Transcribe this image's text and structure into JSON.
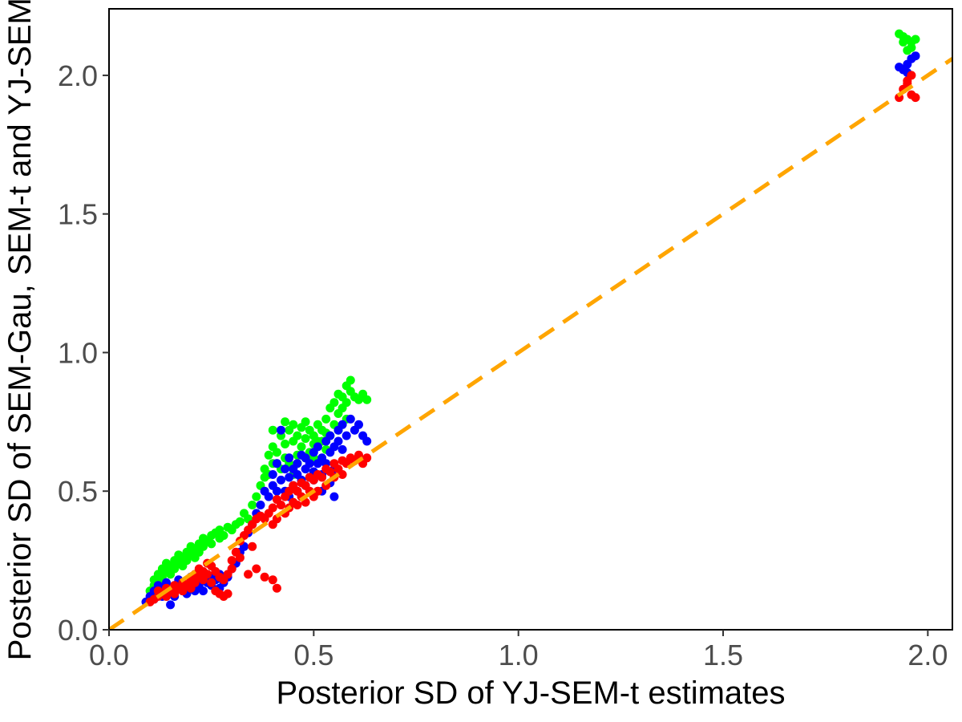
{
  "chart_data": {
    "type": "scatter",
    "title": "",
    "xlabel": "Posterior SD of YJ-SEM-t estimates",
    "ylabel": "Posterior SD of SEM-Gau, SEM-t and YJ-SEM-t",
    "xlim": [
      0.0,
      2.06
    ],
    "ylim": [
      0.0,
      2.24
    ],
    "xticks": [
      0.0,
      0.5,
      1.0,
      1.5,
      2.0
    ],
    "xtick_labels": [
      "0.0",
      "0.5",
      "1.0",
      "1.5",
      "2.0"
    ],
    "yticks": [
      0.0,
      0.5,
      1.0,
      1.5,
      2.0
    ],
    "ytick_labels": [
      "0.0",
      "0.5",
      "1.0",
      "1.5",
      "2.0"
    ],
    "grid": false,
    "reference_line": {
      "slope": 1,
      "intercept": 0,
      "style": "dashed",
      "color": "#FFA500"
    },
    "colors": {
      "SEM-Gau": "#00FF00",
      "SEM-t": "#0000FF",
      "YJ-SEM-t": "#FF0000"
    },
    "series": [
      {
        "color": "#00FF00",
        "points": [
          [
            0.1,
            0.14
          ],
          [
            0.11,
            0.16
          ],
          [
            0.11,
            0.18
          ],
          [
            0.12,
            0.17
          ],
          [
            0.12,
            0.2
          ],
          [
            0.13,
            0.19
          ],
          [
            0.13,
            0.22
          ],
          [
            0.14,
            0.21
          ],
          [
            0.14,
            0.24
          ],
          [
            0.15,
            0.2
          ],
          [
            0.15,
            0.23
          ],
          [
            0.16,
            0.22
          ],
          [
            0.16,
            0.25
          ],
          [
            0.17,
            0.24
          ],
          [
            0.17,
            0.27
          ],
          [
            0.18,
            0.23
          ],
          [
            0.18,
            0.26
          ],
          [
            0.19,
            0.25
          ],
          [
            0.19,
            0.28
          ],
          [
            0.2,
            0.27
          ],
          [
            0.2,
            0.3
          ],
          [
            0.21,
            0.26
          ],
          [
            0.21,
            0.29
          ],
          [
            0.22,
            0.31
          ],
          [
            0.22,
            0.28
          ],
          [
            0.23,
            0.3
          ],
          [
            0.23,
            0.33
          ],
          [
            0.24,
            0.32
          ],
          [
            0.25,
            0.31
          ],
          [
            0.25,
            0.34
          ],
          [
            0.26,
            0.35
          ],
          [
            0.27,
            0.33
          ],
          [
            0.27,
            0.36
          ],
          [
            0.28,
            0.34
          ],
          [
            0.29,
            0.37
          ],
          [
            0.3,
            0.36
          ],
          [
            0.31,
            0.38
          ],
          [
            0.32,
            0.39
          ],
          [
            0.33,
            0.42
          ],
          [
            0.34,
            0.4
          ],
          [
            0.35,
            0.45
          ],
          [
            0.36,
            0.48
          ],
          [
            0.37,
            0.52
          ],
          [
            0.38,
            0.55
          ],
          [
            0.38,
            0.58
          ],
          [
            0.39,
            0.63
          ],
          [
            0.39,
            0.56
          ],
          [
            0.4,
            0.66
          ],
          [
            0.4,
            0.6
          ],
          [
            0.41,
            0.64
          ],
          [
            0.42,
            0.58
          ],
          [
            0.42,
            0.7
          ],
          [
            0.43,
            0.62
          ],
          [
            0.43,
            0.67
          ],
          [
            0.44,
            0.72
          ],
          [
            0.44,
            0.6
          ],
          [
            0.45,
            0.68
          ],
          [
            0.45,
            0.74
          ],
          [
            0.46,
            0.63
          ],
          [
            0.46,
            0.7
          ],
          [
            0.47,
            0.66
          ],
          [
            0.47,
            0.73
          ],
          [
            0.48,
            0.62
          ],
          [
            0.48,
            0.69
          ],
          [
            0.49,
            0.72
          ],
          [
            0.49,
            0.64
          ],
          [
            0.5,
            0.7
          ],
          [
            0.5,
            0.67
          ],
          [
            0.51,
            0.74
          ],
          [
            0.52,
            0.68
          ],
          [
            0.52,
            0.72
          ],
          [
            0.53,
            0.65
          ],
          [
            0.53,
            0.76
          ],
          [
            0.54,
            0.7
          ],
          [
            0.54,
            0.8
          ],
          [
            0.55,
            0.74
          ],
          [
            0.55,
            0.82
          ],
          [
            0.56,
            0.78
          ],
          [
            0.56,
            0.85
          ],
          [
            0.57,
            0.8
          ],
          [
            0.57,
            0.84
          ],
          [
            0.58,
            0.88
          ],
          [
            0.58,
            0.82
          ],
          [
            0.59,
            0.9
          ],
          [
            0.59,
            0.86
          ],
          [
            0.6,
            0.84
          ],
          [
            0.61,
            0.83
          ],
          [
            0.62,
            0.85
          ],
          [
            0.63,
            0.83
          ],
          [
            0.4,
            0.72
          ],
          [
            0.41,
            0.6
          ],
          [
            0.43,
            0.75
          ],
          [
            0.45,
            0.56
          ],
          [
            0.46,
            0.6
          ],
          [
            0.48,
            0.75
          ],
          [
            0.5,
            0.62
          ],
          [
            0.51,
            0.68
          ],
          [
            0.53,
            0.71
          ],
          [
            0.56,
            0.72
          ],
          [
            0.58,
            0.76
          ],
          [
            1.93,
            2.15
          ],
          [
            1.94,
            2.14
          ],
          [
            1.95,
            2.13
          ],
          [
            1.96,
            2.12
          ],
          [
            1.97,
            2.13
          ],
          [
            1.96,
            2.1
          ],
          [
            1.95,
            2.09
          ],
          [
            1.94,
            2.12
          ]
        ]
      },
      {
        "color": "#0000FF",
        "points": [
          [
            0.09,
            0.1
          ],
          [
            0.1,
            0.12
          ],
          [
            0.11,
            0.11
          ],
          [
            0.11,
            0.14
          ],
          [
            0.12,
            0.13
          ],
          [
            0.12,
            0.16
          ],
          [
            0.13,
            0.12
          ],
          [
            0.13,
            0.15
          ],
          [
            0.14,
            0.14
          ],
          [
            0.14,
            0.17
          ],
          [
            0.15,
            0.09
          ],
          [
            0.15,
            0.13
          ],
          [
            0.16,
            0.16
          ],
          [
            0.16,
            0.12
          ],
          [
            0.17,
            0.15
          ],
          [
            0.17,
            0.18
          ],
          [
            0.18,
            0.14
          ],
          [
            0.18,
            0.17
          ],
          [
            0.19,
            0.13
          ],
          [
            0.19,
            0.16
          ],
          [
            0.2,
            0.15
          ],
          [
            0.2,
            0.19
          ],
          [
            0.21,
            0.14
          ],
          [
            0.21,
            0.17
          ],
          [
            0.22,
            0.2
          ],
          [
            0.22,
            0.16
          ],
          [
            0.23,
            0.18
          ],
          [
            0.23,
            0.14
          ],
          [
            0.24,
            0.17
          ],
          [
            0.24,
            0.2
          ],
          [
            0.25,
            0.16
          ],
          [
            0.25,
            0.19
          ],
          [
            0.26,
            0.18
          ],
          [
            0.27,
            0.15
          ],
          [
            0.27,
            0.2
          ],
          [
            0.28,
            0.17
          ],
          [
            0.29,
            0.19
          ],
          [
            0.3,
            0.22
          ],
          [
            0.31,
            0.24
          ],
          [
            0.32,
            0.28
          ],
          [
            0.33,
            0.3
          ],
          [
            0.34,
            0.35
          ],
          [
            0.35,
            0.38
          ],
          [
            0.36,
            0.42
          ],
          [
            0.37,
            0.45
          ],
          [
            0.38,
            0.5
          ],
          [
            0.39,
            0.48
          ],
          [
            0.4,
            0.52
          ],
          [
            0.4,
            0.56
          ],
          [
            0.41,
            0.5
          ],
          [
            0.41,
            0.6
          ],
          [
            0.42,
            0.54
          ],
          [
            0.42,
            0.72
          ],
          [
            0.43,
            0.58
          ],
          [
            0.43,
            0.5
          ],
          [
            0.44,
            0.55
          ],
          [
            0.44,
            0.62
          ],
          [
            0.45,
            0.58
          ],
          [
            0.45,
            0.52
          ],
          [
            0.46,
            0.6
          ],
          [
            0.46,
            0.56
          ],
          [
            0.47,
            0.63
          ],
          [
            0.47,
            0.54
          ],
          [
            0.48,
            0.58
          ],
          [
            0.48,
            0.62
          ],
          [
            0.49,
            0.55
          ],
          [
            0.49,
            0.6
          ],
          [
            0.5,
            0.57
          ],
          [
            0.5,
            0.64
          ],
          [
            0.51,
            0.6
          ],
          [
            0.51,
            0.66
          ],
          [
            0.52,
            0.62
          ],
          [
            0.52,
            0.56
          ],
          [
            0.53,
            0.68
          ],
          [
            0.53,
            0.6
          ],
          [
            0.54,
            0.7
          ],
          [
            0.54,
            0.64
          ],
          [
            0.55,
            0.66
          ],
          [
            0.55,
            0.58
          ],
          [
            0.56,
            0.72
          ],
          [
            0.56,
            0.68
          ],
          [
            0.57,
            0.74
          ],
          [
            0.57,
            0.65
          ],
          [
            0.58,
            0.7
          ],
          [
            0.59,
            0.76
          ],
          [
            0.6,
            0.72
          ],
          [
            0.61,
            0.74
          ],
          [
            0.62,
            0.7
          ],
          [
            0.63,
            0.68
          ],
          [
            0.44,
            0.48
          ],
          [
            0.46,
            0.5
          ],
          [
            0.48,
            0.52
          ],
          [
            0.5,
            0.54
          ],
          [
            0.52,
            0.5
          ],
          [
            0.54,
            0.53
          ],
          [
            0.55,
            0.48
          ],
          [
            1.93,
            2.03
          ],
          [
            1.94,
            2.02
          ],
          [
            1.95,
            2.04
          ],
          [
            1.96,
            2.06
          ],
          [
            1.97,
            2.07
          ],
          [
            1.95,
            2.01
          ]
        ]
      },
      {
        "color": "#FF0000",
        "points": [
          [
            0.1,
            0.1
          ],
          [
            0.11,
            0.11
          ],
          [
            0.12,
            0.12
          ],
          [
            0.12,
            0.14
          ],
          [
            0.13,
            0.13
          ],
          [
            0.14,
            0.12
          ],
          [
            0.14,
            0.15
          ],
          [
            0.15,
            0.14
          ],
          [
            0.16,
            0.13
          ],
          [
            0.16,
            0.16
          ],
          [
            0.17,
            0.15
          ],
          [
            0.18,
            0.14
          ],
          [
            0.18,
            0.17
          ],
          [
            0.19,
            0.16
          ],
          [
            0.2,
            0.18
          ],
          [
            0.2,
            0.15
          ],
          [
            0.21,
            0.2
          ],
          [
            0.21,
            0.17
          ],
          [
            0.22,
            0.19
          ],
          [
            0.22,
            0.22
          ],
          [
            0.23,
            0.18
          ],
          [
            0.23,
            0.21
          ],
          [
            0.24,
            0.24
          ],
          [
            0.24,
            0.2
          ],
          [
            0.25,
            0.23
          ],
          [
            0.25,
            0.17
          ],
          [
            0.26,
            0.21
          ],
          [
            0.26,
            0.14
          ],
          [
            0.27,
            0.19
          ],
          [
            0.27,
            0.13
          ],
          [
            0.28,
            0.18
          ],
          [
            0.28,
            0.12
          ],
          [
            0.29,
            0.2
          ],
          [
            0.29,
            0.13
          ],
          [
            0.3,
            0.25
          ],
          [
            0.31,
            0.28
          ],
          [
            0.32,
            0.32
          ],
          [
            0.33,
            0.34
          ],
          [
            0.34,
            0.36
          ],
          [
            0.35,
            0.38
          ],
          [
            0.36,
            0.4
          ],
          [
            0.37,
            0.41
          ],
          [
            0.38,
            0.4
          ],
          [
            0.39,
            0.42
          ],
          [
            0.4,
            0.44
          ],
          [
            0.4,
            0.38
          ],
          [
            0.41,
            0.47
          ],
          [
            0.41,
            0.4
          ],
          [
            0.42,
            0.45
          ],
          [
            0.43,
            0.48
          ],
          [
            0.43,
            0.42
          ],
          [
            0.44,
            0.5
          ],
          [
            0.44,
            0.44
          ],
          [
            0.45,
            0.52
          ],
          [
            0.45,
            0.46
          ],
          [
            0.46,
            0.5
          ],
          [
            0.46,
            0.45
          ],
          [
            0.47,
            0.53
          ],
          [
            0.47,
            0.48
          ],
          [
            0.48,
            0.52
          ],
          [
            0.48,
            0.46
          ],
          [
            0.49,
            0.55
          ],
          [
            0.49,
            0.5
          ],
          [
            0.5,
            0.54
          ],
          [
            0.5,
            0.48
          ],
          [
            0.51,
            0.56
          ],
          [
            0.51,
            0.5
          ],
          [
            0.52,
            0.55
          ],
          [
            0.53,
            0.58
          ],
          [
            0.53,
            0.52
          ],
          [
            0.54,
            0.57
          ],
          [
            0.55,
            0.6
          ],
          [
            0.55,
            0.55
          ],
          [
            0.56,
            0.58
          ],
          [
            0.57,
            0.61
          ],
          [
            0.57,
            0.56
          ],
          [
            0.58,
            0.6
          ],
          [
            0.59,
            0.62
          ],
          [
            0.6,
            0.61
          ],
          [
            0.61,
            0.63
          ],
          [
            0.62,
            0.6
          ],
          [
            0.63,
            0.62
          ],
          [
            0.34,
            0.2
          ],
          [
            0.36,
            0.22
          ],
          [
            0.38,
            0.19
          ],
          [
            0.4,
            0.18
          ],
          [
            0.41,
            0.15
          ],
          [
            0.32,
            0.26
          ],
          [
            0.35,
            0.3
          ],
          [
            0.3,
            0.22
          ],
          [
            1.93,
            1.92
          ],
          [
            1.94,
            1.95
          ],
          [
            1.95,
            1.97
          ],
          [
            1.96,
            1.93
          ],
          [
            1.97,
            1.92
          ],
          [
            1.96,
            2.0
          ],
          [
            1.95,
            1.98
          ]
        ]
      }
    ]
  }
}
